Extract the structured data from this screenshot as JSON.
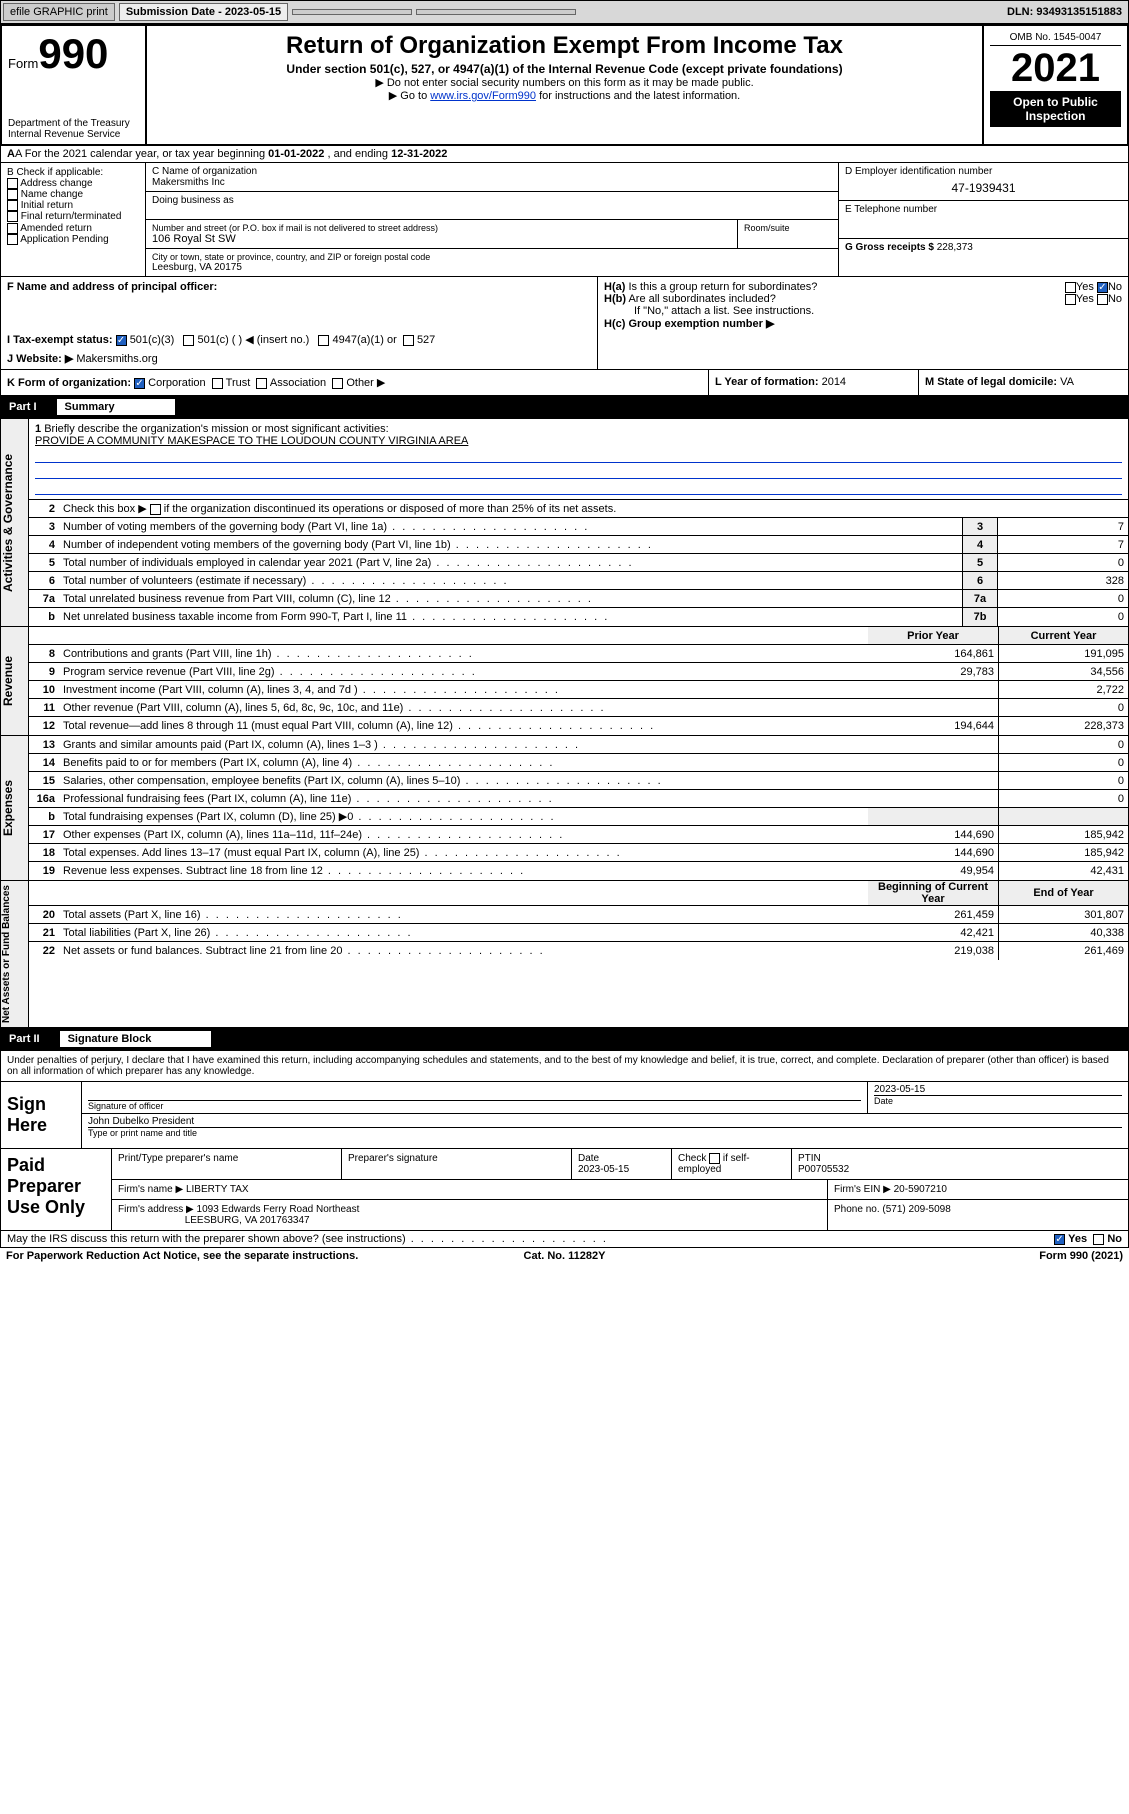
{
  "topbar": {
    "efile": "efile GRAPHIC print",
    "submission": "Submission Date - 2023-05-15",
    "dln": "DLN: 93493135151883"
  },
  "header": {
    "formword": "Form",
    "form990": "990",
    "title": "Return of Organization Exempt From Income Tax",
    "sub": "Under section 501(c), 527, or 4947(a)(1) of the Internal Revenue Code (except private foundations)",
    "note1": "▶ Do not enter social security numbers on this form as it may be made public.",
    "note2_pre": "▶ Go to ",
    "note2_link": "www.irs.gov/Form990",
    "note2_post": " for instructions and the latest information.",
    "dept": "Department of the Treasury",
    "irs": "Internal Revenue Service",
    "omb": "OMB No. 1545-0047",
    "year": "2021",
    "open": "Open to Public Inspection"
  },
  "a": {
    "text_pre": "A For the 2021 calendar year, or tax year beginning ",
    "begin": "01-01-2022",
    "mid": " , and ending ",
    "end": "12-31-2022"
  },
  "b": {
    "label": "B Check if applicable:",
    "opts": [
      "Address change",
      "Name change",
      "Initial return",
      "Final return/terminated",
      "Amended return",
      "Application Pending"
    ]
  },
  "c": {
    "label": "C Name of organization",
    "name": "Makersmiths Inc",
    "dba_label": "Doing business as",
    "street_label": "Number and street (or P.O. box if mail is not delivered to street address)",
    "room_label": "Room/suite",
    "street": "106 Royal St SW",
    "city_label": "City or town, state or province, country, and ZIP or foreign postal code",
    "city": "Leesburg, VA  20175"
  },
  "d": {
    "label": "D Employer identification number",
    "value": "47-1939431"
  },
  "e": {
    "label": "E Telephone number"
  },
  "g": {
    "label": "G Gross receipts $",
    "value": "228,373"
  },
  "f": {
    "label": "F  Name and address of principal officer:"
  },
  "h": {
    "ha": "H(a)  Is this a group return for subordinates?",
    "hb": "H(b)  Are all subordinates included?",
    "hb_note": "If \"No,\" attach a list. See instructions.",
    "hc": "H(c)  Group exemption number ▶",
    "yes": "Yes",
    "no": "No"
  },
  "i": {
    "label": "I   Tax-exempt status:",
    "o1": "501(c)(3)",
    "o2": "501(c) (  ) ◀ (insert no.)",
    "o3": "4947(a)(1) or",
    "o4": "527"
  },
  "j": {
    "label": "J   Website: ▶",
    "value": "Makersmiths.org"
  },
  "k": {
    "label": "K Form of organization:",
    "o1": "Corporation",
    "o2": "Trust",
    "o3": "Association",
    "o4": "Other ▶"
  },
  "l": {
    "label": "L Year of formation:",
    "value": "2014"
  },
  "m": {
    "label": "M State of legal domicile:",
    "value": "VA"
  },
  "part1": {
    "num": "Part I",
    "title": "Summary"
  },
  "summary": {
    "q1": "Briefly describe the organization's mission or most significant activities:",
    "mission": "PROVIDE A COMMUNITY MAKESPACE TO THE LOUDOUN COUNTY VIRGINIA AREA",
    "q2": "Check this box ▶       if the organization discontinued its operations or disposed of more than 25% of its net assets.",
    "lines": [
      {
        "n": "3",
        "t": "Number of voting members of the governing body (Part VI, line 1a)",
        "box": "3",
        "v": "7"
      },
      {
        "n": "4",
        "t": "Number of independent voting members of the governing body (Part VI, line 1b)",
        "box": "4",
        "v": "7"
      },
      {
        "n": "5",
        "t": "Total number of individuals employed in calendar year 2021 (Part V, line 2a)",
        "box": "5",
        "v": "0"
      },
      {
        "n": "6",
        "t": "Total number of volunteers (estimate if necessary)",
        "box": "6",
        "v": "328"
      },
      {
        "n": "7a",
        "t": "Total unrelated business revenue from Part VIII, column (C), line 12",
        "box": "7a",
        "v": "0"
      },
      {
        "n": "b",
        "t": "Net unrelated business taxable income from Form 990-T, Part I, line 11",
        "box": "7b",
        "v": "0"
      }
    ],
    "hdr_prior": "Prior Year",
    "hdr_current": "Current Year",
    "revenue": [
      {
        "n": "8",
        "t": "Contributions and grants (Part VIII, line 1h)",
        "p": "164,861",
        "c": "191,095"
      },
      {
        "n": "9",
        "t": "Program service revenue (Part VIII, line 2g)",
        "p": "29,783",
        "c": "34,556"
      },
      {
        "n": "10",
        "t": "Investment income (Part VIII, column (A), lines 3, 4, and 7d )",
        "p": "",
        "c": "2,722"
      },
      {
        "n": "11",
        "t": "Other revenue (Part VIII, column (A), lines 5, 6d, 8c, 9c, 10c, and 11e)",
        "p": "",
        "c": "0"
      },
      {
        "n": "12",
        "t": "Total revenue—add lines 8 through 11 (must equal Part VIII, column (A), line 12)",
        "p": "194,644",
        "c": "228,373"
      }
    ],
    "expenses": [
      {
        "n": "13",
        "t": "Grants and similar amounts paid (Part IX, column (A), lines 1–3 )",
        "p": "",
        "c": "0"
      },
      {
        "n": "14",
        "t": "Benefits paid to or for members (Part IX, column (A), line 4)",
        "p": "",
        "c": "0"
      },
      {
        "n": "15",
        "t": "Salaries, other compensation, employee benefits (Part IX, column (A), lines 5–10)",
        "p": "",
        "c": "0"
      },
      {
        "n": "16a",
        "t": "Professional fundraising fees (Part IX, column (A), line 11e)",
        "p": "",
        "c": "0"
      },
      {
        "n": "b",
        "t": "Total fundraising expenses (Part IX, column (D), line 25) ▶0",
        "p": "grey",
        "c": "grey"
      },
      {
        "n": "17",
        "t": "Other expenses (Part IX, column (A), lines 11a–11d, 11f–24e)",
        "p": "144,690",
        "c": "185,942"
      },
      {
        "n": "18",
        "t": "Total expenses. Add lines 13–17 (must equal Part IX, column (A), line 25)",
        "p": "144,690",
        "c": "185,942"
      },
      {
        "n": "19",
        "t": "Revenue less expenses. Subtract line 18 from line 12",
        "p": "49,954",
        "c": "42,431"
      }
    ],
    "hdr_begin": "Beginning of Current Year",
    "hdr_end": "End of Year",
    "assets": [
      {
        "n": "20",
        "t": "Total assets (Part X, line 16)",
        "p": "261,459",
        "c": "301,807"
      },
      {
        "n": "21",
        "t": "Total liabilities (Part X, line 26)",
        "p": "42,421",
        "c": "40,338"
      },
      {
        "n": "22",
        "t": "Net assets or fund balances. Subtract line 21 from line 20",
        "p": "219,038",
        "c": "261,469"
      }
    ],
    "vlabels": {
      "gov": "Activities & Governance",
      "rev": "Revenue",
      "exp": "Expenses",
      "net": "Net Assets or Fund Balances"
    }
  },
  "part2": {
    "num": "Part II",
    "title": "Signature Block"
  },
  "sig": {
    "decl": "Under penalties of perjury, I declare that I have examined this return, including accompanying schedules and statements, and to the best of my knowledge and belief, it is true, correct, and complete. Declaration of preparer (other than officer) is based on all information of which preparer has any knowledge.",
    "here": "Sign Here",
    "sig_officer": "Signature of officer",
    "date": "Date",
    "date_val": "2023-05-15",
    "officer": "John Dubelko  President",
    "name_title": "Type or print name and title"
  },
  "prep": {
    "label": "Paid Preparer Use Only",
    "h1": "Print/Type preparer's name",
    "h2": "Preparer's signature",
    "h3": "Date",
    "h3v": "2023-05-15",
    "h4": "Check         if self-employed",
    "h5": "PTIN",
    "h5v": "P00705532",
    "firm_name_l": "Firm's name      ▶",
    "firm_name": "LIBERTY TAX",
    "firm_ein_l": "Firm's EIN ▶",
    "firm_ein": "20-5907210",
    "firm_addr_l": "Firm's address ▶",
    "firm_addr1": "1093 Edwards Ferry Road Northeast",
    "firm_addr2": "LEESBURG, VA  201763347",
    "phone_l": "Phone no.",
    "phone": "(571) 209-5098"
  },
  "discuss": {
    "q": "May the IRS discuss this return with the preparer shown above? (see instructions)",
    "yes": "Yes",
    "no": "No"
  },
  "footer": {
    "l": "For Paperwork Reduction Act Notice, see the separate instructions.",
    "c": "Cat. No. 11282Y",
    "r": "Form 990 (2021)"
  }
}
